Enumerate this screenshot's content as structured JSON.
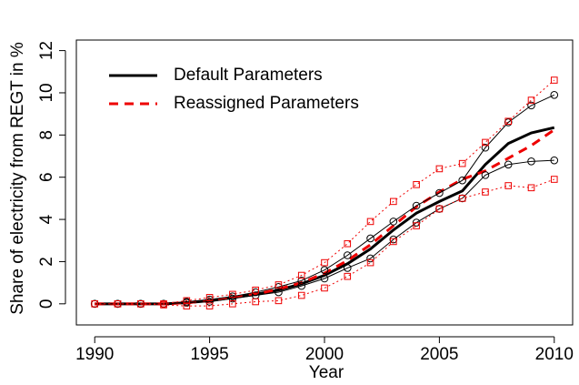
{
  "chart_data": {
    "type": "line",
    "xlabel": "Year",
    "ylabel": "Share of electricity from REGT in %",
    "x": [
      1990,
      1991,
      1992,
      1993,
      1994,
      1995,
      1996,
      1997,
      1998,
      1999,
      2000,
      2001,
      2002,
      2003,
      2004,
      2005,
      2006,
      2007,
      2008,
      2009,
      2010
    ],
    "series": [
      {
        "name": "Default Parameters",
        "color": "#000000",
        "width": 3,
        "dash": "none",
        "marker": "none",
        "values": [
          0,
          0,
          0,
          0,
          0.05,
          0.15,
          0.3,
          0.45,
          0.65,
          0.95,
          1.35,
          1.9,
          2.6,
          3.5,
          4.3,
          4.85,
          5.35,
          6.6,
          7.6,
          8.1,
          8.35
        ]
      },
      {
        "name": "Reassigned Parameters",
        "color": "#ee0000",
        "width": 3,
        "dash": "10 7",
        "marker": "none",
        "values": [
          0,
          0,
          0,
          0,
          0.05,
          0.15,
          0.3,
          0.45,
          0.7,
          1.0,
          1.45,
          2.05,
          2.8,
          3.7,
          4.6,
          5.3,
          5.9,
          6.3,
          6.9,
          7.5,
          8.25
        ]
      },
      {
        "color": "#000000",
        "width": 1,
        "dash": "none",
        "marker": "circle",
        "values": [
          0,
          0,
          0,
          0,
          0.1,
          0.2,
          0.35,
          0.55,
          0.8,
          1.1,
          1.6,
          2.3,
          3.1,
          3.9,
          4.65,
          5.25,
          5.85,
          7.4,
          8.6,
          9.4,
          9.9
        ]
      },
      {
        "color": "#000000",
        "width": 1,
        "dash": "none",
        "marker": "circle",
        "values": [
          0,
          0,
          0,
          0,
          0.05,
          0.1,
          0.25,
          0.4,
          0.55,
          0.85,
          1.2,
          1.7,
          2.15,
          3.05,
          3.85,
          4.5,
          5.0,
          6.1,
          6.6,
          6.75,
          6.8
        ]
      },
      {
        "color": "#ee0000",
        "width": 1,
        "dash": "2 3",
        "marker": "square",
        "values": [
          0,
          0,
          0,
          0,
          0.15,
          0.3,
          0.45,
          0.65,
          0.9,
          1.35,
          1.95,
          2.85,
          3.9,
          4.85,
          5.65,
          6.4,
          6.65,
          7.65,
          8.65,
          9.65,
          10.6
        ]
      },
      {
        "color": "#ee0000",
        "width": 1,
        "dash": "2 3",
        "marker": "square",
        "values": [
          0,
          0,
          0,
          -0.05,
          -0.1,
          -0.1,
          0.0,
          0.1,
          0.15,
          0.4,
          0.75,
          1.3,
          1.95,
          2.95,
          3.7,
          4.5,
          5.0,
          5.3,
          5.6,
          5.5,
          5.9
        ]
      }
    ],
    "xlim": [
      1989.2,
      2010.8
    ],
    "ylim": [
      -1,
      12.5
    ],
    "xticks": [
      1990,
      1995,
      2000,
      2005,
      2010
    ],
    "yticks": [
      0,
      2,
      4,
      6,
      8,
      10,
      12
    ],
    "legend": "top-left"
  }
}
